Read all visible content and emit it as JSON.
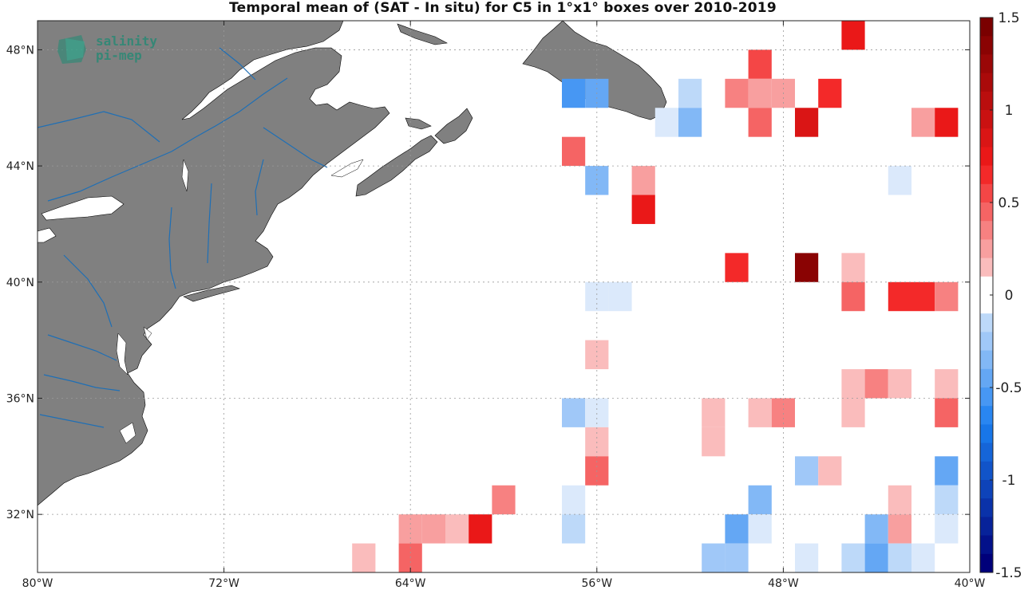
{
  "title": "Temporal mean of (SAT - In situ) for C5 in 1°x1° boxes over 2010-2019",
  "logo": {
    "line1": "salinity",
    "line2": "pi-mep"
  },
  "colorbar": {
    "min": -1.5,
    "max": 1.5,
    "step": 0.1,
    "tick_labels": [
      "1.5",
      "1",
      "0.5",
      "0",
      "-0.5",
      "-1",
      "-1.5"
    ],
    "tick_values": [
      1.5,
      1,
      0.5,
      0,
      -0.5,
      -1,
      -1.5
    ],
    "colors": {
      "negative_strong": "#00007a",
      "negative_mid": "#1a7ef0",
      "negative_light": "#dbe9fb",
      "zero": "#ffffff",
      "positive_light": "#fbdada",
      "positive_mid": "#f21a1a",
      "positive_strong": "#7a0000"
    }
  },
  "land_color": "#808080",
  "river_color": "#1f6fb5",
  "chart_data": {
    "type": "heatmap",
    "title": "Temporal mean of (SAT - In situ) for C5 in 1°x1° boxes over 2010-2019",
    "xlim": [
      -80,
      -40
    ],
    "ylim": [
      30,
      49
    ],
    "x_ticks": [
      -80,
      -72,
      -64,
      -56,
      -48,
      -40
    ],
    "x_tick_labels": [
      "80°W",
      "72°W",
      "64°W",
      "56°W",
      "48°W",
      "40°W"
    ],
    "y_ticks": [
      32,
      36,
      40,
      44,
      48
    ],
    "y_tick_labels": [
      "32°N",
      "36°N",
      "40°N",
      "44°N",
      "48°N"
    ],
    "grid": true,
    "cell_size_deg": 1,
    "cells": [
      {
        "lon": -45,
        "lat": 48.5,
        "v": 0.8
      },
      {
        "lon": -49,
        "lat": 47.5,
        "v": 0.6
      },
      {
        "lon": -57,
        "lat": 46.5,
        "v": -0.6
      },
      {
        "lon": -56,
        "lat": 46.5,
        "v": -0.5
      },
      {
        "lon": -52,
        "lat": 46.5,
        "v": -0.2
      },
      {
        "lon": -50,
        "lat": 46.5,
        "v": 0.4
      },
      {
        "lon": -49,
        "lat": 46.5,
        "v": 0.3
      },
      {
        "lon": -48,
        "lat": 46.5,
        "v": 0.3
      },
      {
        "lon": -46,
        "lat": 46.5,
        "v": 0.7
      },
      {
        "lon": -53,
        "lat": 45.5,
        "v": -0.1
      },
      {
        "lon": -52,
        "lat": 45.5,
        "v": -0.4
      },
      {
        "lon": -49,
        "lat": 45.5,
        "v": 0.5
      },
      {
        "lon": -47,
        "lat": 45.5,
        "v": 0.9
      },
      {
        "lon": -42,
        "lat": 45.5,
        "v": 0.3
      },
      {
        "lon": -41,
        "lat": 45.5,
        "v": 0.8
      },
      {
        "lon": -57,
        "lat": 44.5,
        "v": 0.5
      },
      {
        "lon": -56,
        "lat": 43.5,
        "v": -0.4
      },
      {
        "lon": -54,
        "lat": 43.5,
        "v": 0.3
      },
      {
        "lon": -43,
        "lat": 43.5,
        "v": -0.1
      },
      {
        "lon": -54,
        "lat": 42.5,
        "v": 0.8
      },
      {
        "lon": -50,
        "lat": 40.5,
        "v": 0.7
      },
      {
        "lon": -47,
        "lat": 40.5,
        "v": 1.4
      },
      {
        "lon": -45,
        "lat": 40.5,
        "v": 0.2
      },
      {
        "lon": -56,
        "lat": 39.5,
        "v": -0.1
      },
      {
        "lon": -55,
        "lat": 39.5,
        "v": -0.1
      },
      {
        "lon": -45,
        "lat": 39.5,
        "v": 0.5
      },
      {
        "lon": -43,
        "lat": 39.5,
        "v": 0.7
      },
      {
        "lon": -42,
        "lat": 39.5,
        "v": 0.7
      },
      {
        "lon": -41,
        "lat": 39.5,
        "v": 0.4
      },
      {
        "lon": -56,
        "lat": 37.5,
        "v": 0.2
      },
      {
        "lon": -45,
        "lat": 36.5,
        "v": 0.2
      },
      {
        "lon": -44,
        "lat": 36.5,
        "v": 0.4
      },
      {
        "lon": -43,
        "lat": 36.5,
        "v": 0.2
      },
      {
        "lon": -41,
        "lat": 36.5,
        "v": 0.2
      },
      {
        "lon": -57,
        "lat": 35.5,
        "v": -0.3
      },
      {
        "lon": -56,
        "lat": 35.5,
        "v": -0.1
      },
      {
        "lon": -51,
        "lat": 35.5,
        "v": 0.2
      },
      {
        "lon": -49,
        "lat": 35.5,
        "v": 0.2
      },
      {
        "lon": -48,
        "lat": 35.5,
        "v": 0.4
      },
      {
        "lon": -45,
        "lat": 35.5,
        "v": 0.2
      },
      {
        "lon": -41,
        "lat": 35.5,
        "v": 0.5
      },
      {
        "lon": -56,
        "lat": 34.5,
        "v": 0.2
      },
      {
        "lon": -51,
        "lat": 34.5,
        "v": 0.2
      },
      {
        "lon": -56,
        "lat": 33.5,
        "v": 0.5
      },
      {
        "lon": -47,
        "lat": 33.5,
        "v": -0.3
      },
      {
        "lon": -46,
        "lat": 33.5,
        "v": 0.2
      },
      {
        "lon": -41,
        "lat": 33.5,
        "v": -0.5
      },
      {
        "lon": -60,
        "lat": 32.5,
        "v": 0.4
      },
      {
        "lon": -57,
        "lat": 32.5,
        "v": -0.1
      },
      {
        "lon": -49,
        "lat": 32.5,
        "v": -0.4
      },
      {
        "lon": -43,
        "lat": 32.5,
        "v": 0.2
      },
      {
        "lon": -41,
        "lat": 32.5,
        "v": -0.2
      },
      {
        "lon": -64,
        "lat": 31.5,
        "v": 0.3
      },
      {
        "lon": -63,
        "lat": 31.5,
        "v": 0.3
      },
      {
        "lon": -62,
        "lat": 31.5,
        "v": 0.2
      },
      {
        "lon": -61,
        "lat": 31.5,
        "v": 0.8
      },
      {
        "lon": -57,
        "lat": 31.5,
        "v": -0.2
      },
      {
        "lon": -50,
        "lat": 31.5,
        "v": -0.5
      },
      {
        "lon": -49,
        "lat": 31.5,
        "v": -0.1
      },
      {
        "lon": -44,
        "lat": 31.5,
        "v": -0.4
      },
      {
        "lon": -43,
        "lat": 31.5,
        "v": 0.3
      },
      {
        "lon": -41,
        "lat": 31.5,
        "v": -0.1
      },
      {
        "lon": -66,
        "lat": 30.5,
        "v": 0.2
      },
      {
        "lon": -64,
        "lat": 30.5,
        "v": 0.5
      },
      {
        "lon": -51,
        "lat": 30.5,
        "v": -0.3
      },
      {
        "lon": -50,
        "lat": 30.5,
        "v": -0.3
      },
      {
        "lon": -47,
        "lat": 30.5,
        "v": -0.1
      },
      {
        "lon": -45,
        "lat": 30.5,
        "v": -0.2
      },
      {
        "lon": -44,
        "lat": 30.5,
        "v": -0.5
      },
      {
        "lon": -43,
        "lat": 30.5,
        "v": -0.2
      },
      {
        "lon": -42,
        "lat": 30.5,
        "v": -0.1
      }
    ]
  }
}
